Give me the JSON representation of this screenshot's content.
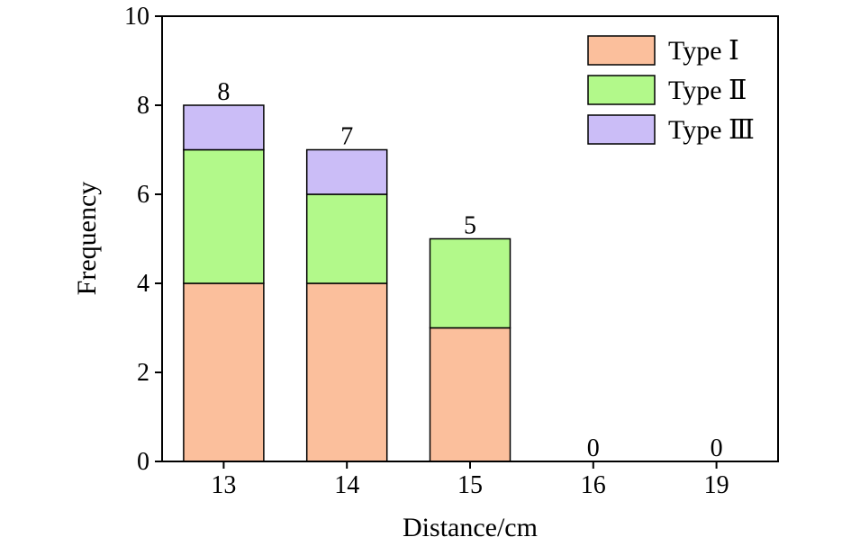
{
  "chart_data": {
    "type": "bar",
    "stacked": true,
    "categories": [
      "13",
      "14",
      "15",
      "16",
      "19"
    ],
    "series": [
      {
        "name": "Type Ⅰ",
        "values": [
          4,
          4,
          3,
          0,
          0
        ],
        "color": "#fbbf9c"
      },
      {
        "name": "Type Ⅱ",
        "values": [
          3,
          2,
          2,
          0,
          0
        ],
        "color": "#b2f98a"
      },
      {
        "name": "Type Ⅲ",
        "values": [
          1,
          1,
          0,
          0,
          0
        ],
        "color": "#cbbdf7"
      }
    ],
    "totals": [
      "8",
      "7",
      "5",
      "0",
      "0"
    ],
    "xlabel": "Distance/cm",
    "ylabel": "Frequency",
    "ylim": [
      0,
      10
    ],
    "yticks": [
      "0",
      "2",
      "4",
      "6",
      "8",
      "10"
    ],
    "grid": false,
    "legend_position": "top-right"
  }
}
